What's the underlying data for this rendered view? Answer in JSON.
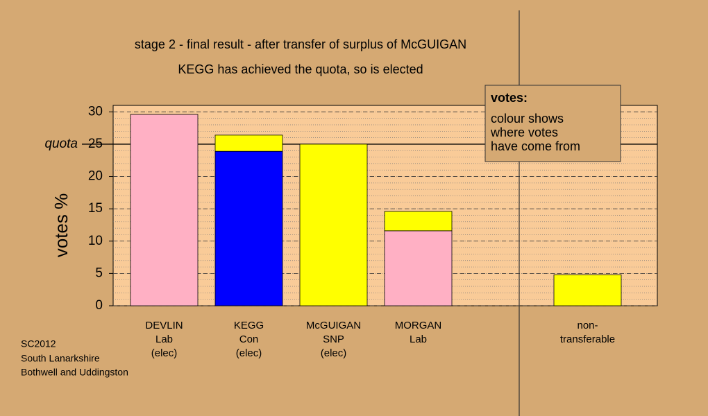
{
  "chart_data": {
    "type": "stacked-bar",
    "title": "stage 2 - final result - after transfer of surplus of McGUIGAN",
    "subtitle": "KEGG has achieved the quota, so is elected",
    "y_label": "votes %",
    "ylim": [
      0,
      31
    ],
    "yticks": [
      0,
      5,
      10,
      15,
      20,
      25,
      30
    ],
    "minor_tick_step": 1,
    "quota": {
      "value": 25,
      "label": "quota"
    },
    "categories": [
      [
        "DEVLIN",
        "Lab",
        "(elec)"
      ],
      [
        "KEGG",
        "Con",
        "(elec)"
      ],
      [
        "McGUIGAN",
        "SNP",
        "(elec)"
      ],
      [
        "MORGAN",
        "Lab"
      ],
      null,
      [
        "non-",
        "transferable"
      ]
    ],
    "bars": [
      [
        {
          "value": 29.6,
          "color": "#ffb0c4"
        }
      ],
      [
        {
          "value": 23.9,
          "color": "#0000ff"
        },
        {
          "value": 2.5,
          "color": "#ffff00"
        }
      ],
      [
        {
          "value": 25,
          "color": "#ffff00"
        }
      ],
      [
        {
          "value": 11.6,
          "color": "#ffb0c4"
        },
        {
          "value": 3.0,
          "color": "#ffff00"
        }
      ],
      null,
      [
        {
          "value": 4.8,
          "color": "#ffff00"
        }
      ]
    ],
    "legend": {
      "title": "votes:",
      "lines": [
        "colour shows",
        "where votes",
        "have come from"
      ]
    },
    "notes": [
      "SC2012",
      "South Lanarkshire",
      "Bothwell and Uddingston"
    ]
  }
}
